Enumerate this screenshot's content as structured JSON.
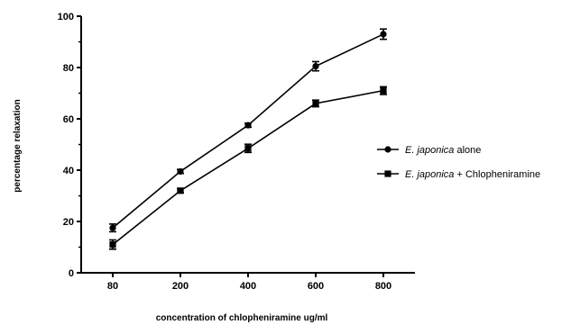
{
  "chart_data": {
    "type": "line",
    "categories": [
      "80",
      "200",
      "400",
      "600",
      "800"
    ],
    "y_ticks": [
      "0",
      "20",
      "40",
      "60",
      "80",
      "100"
    ],
    "ylim": [
      0,
      100
    ],
    "xlabel": "concentration of chlopheniramine ug/ml",
    "ylabel": "percentage relaxation",
    "legend_position": "right",
    "series": [
      {
        "name_italic": "E. japonica",
        "name_rest": " alone",
        "marker": "circle",
        "color": "#000000",
        "values": [
          17.5,
          39.5,
          57.5,
          80.5,
          93.0
        ],
        "errors": [
          1.5,
          0.8,
          0.8,
          1.8,
          2.0
        ]
      },
      {
        "name_italic": "E. japonica",
        "name_rest": " + Chlopheniramine",
        "marker": "square",
        "color": "#000000",
        "values": [
          11.0,
          32.0,
          48.5,
          66.0,
          71.0
        ],
        "errors": [
          1.8,
          0.8,
          1.6,
          1.3,
          1.5
        ]
      }
    ]
  }
}
